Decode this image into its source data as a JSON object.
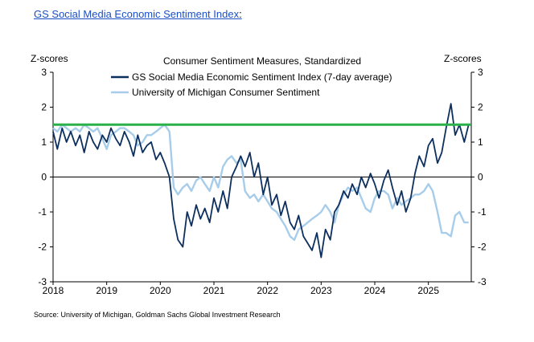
{
  "header": {
    "link_text": "GS Social Media Economic Sentiment Index",
    "link_suffix": ":"
  },
  "chart_data": {
    "type": "line",
    "title": "Consumer Sentiment Measures, Standardized",
    "ylabel_left": "Z-scores",
    "ylabel_right": "Z-scores",
    "xlim": [
      2018,
      2025.8
    ],
    "ylim": [
      -3,
      3
    ],
    "x_ticks": [
      "2018",
      "2019",
      "2020",
      "2021",
      "2022",
      "2023",
      "2024",
      "2025"
    ],
    "y_ticks": [
      3,
      2,
      1,
      0,
      -1,
      -2,
      -3
    ],
    "grid": false,
    "legend_placement": "top-center",
    "reference_line": {
      "y": 1.5,
      "color": "#2bb14a"
    },
    "series": [
      {
        "name": "GS Social Media Economic Sentiment Index (7-day average)",
        "color": "#0d2f5e",
        "x": [
          2018.0,
          2018.08,
          2018.17,
          2018.25,
          2018.33,
          2018.42,
          2018.5,
          2018.58,
          2018.67,
          2018.75,
          2018.83,
          2018.92,
          2019.0,
          2019.08,
          2019.17,
          2019.25,
          2019.33,
          2019.42,
          2019.5,
          2019.58,
          2019.67,
          2019.75,
          2019.83,
          2019.92,
          2020.0,
          2020.08,
          2020.17,
          2020.25,
          2020.33,
          2020.42,
          2020.5,
          2020.58,
          2020.67,
          2020.75,
          2020.83,
          2020.92,
          2021.0,
          2021.08,
          2021.17,
          2021.25,
          2021.33,
          2021.42,
          2021.5,
          2021.58,
          2021.67,
          2021.75,
          2021.83,
          2021.92,
          2022.0,
          2022.08,
          2022.17,
          2022.25,
          2022.33,
          2022.42,
          2022.5,
          2022.58,
          2022.67,
          2022.75,
          2022.83,
          2022.92,
          2023.0,
          2023.08,
          2023.17,
          2023.25,
          2023.33,
          2023.42,
          2023.5,
          2023.58,
          2023.67,
          2023.75,
          2023.83,
          2023.92,
          2024.0,
          2024.08,
          2024.17,
          2024.25,
          2024.33,
          2024.42,
          2024.5,
          2024.58,
          2024.67,
          2024.75,
          2024.83,
          2024.92,
          2025.0,
          2025.08,
          2025.17,
          2025.25,
          2025.33,
          2025.42,
          2025.5,
          2025.58,
          2025.67,
          2025.75
        ],
        "y": [
          1.3,
          0.8,
          1.4,
          1.0,
          1.3,
          0.9,
          1.2,
          0.7,
          1.3,
          1.0,
          0.8,
          1.2,
          1.0,
          1.4,
          1.1,
          0.9,
          1.3,
          1.0,
          0.6,
          1.2,
          0.7,
          0.9,
          1.0,
          0.5,
          0.7,
          0.4,
          0.0,
          -1.2,
          -1.8,
          -2.0,
          -1.0,
          -1.4,
          -0.8,
          -1.2,
          -0.9,
          -1.3,
          -0.6,
          -1.0,
          -0.4,
          -0.9,
          0.0,
          0.3,
          0.6,
          0.3,
          0.7,
          0.0,
          0.4,
          -0.5,
          0.0,
          -0.8,
          -0.5,
          -1.1,
          -0.7,
          -1.3,
          -1.5,
          -1.1,
          -1.7,
          -1.9,
          -2.1,
          -1.6,
          -2.3,
          -1.5,
          -1.8,
          -1.0,
          -0.8,
          -0.4,
          -0.6,
          -0.2,
          -0.5,
          0.0,
          -0.3,
          0.1,
          -0.2,
          -0.6,
          -0.1,
          0.2,
          -0.3,
          -0.8,
          -0.4,
          -1.0,
          -0.6,
          0.1,
          0.6,
          0.3,
          0.9,
          1.1,
          0.4,
          0.7,
          1.4,
          2.1,
          1.2,
          1.5,
          1.0,
          1.5
        ]
      },
      {
        "name": "University of Michigan Consumer Sentiment",
        "color": "#a7cdea",
        "x": [
          2018.0,
          2018.08,
          2018.17,
          2018.25,
          2018.33,
          2018.42,
          2018.5,
          2018.58,
          2018.67,
          2018.75,
          2018.83,
          2018.92,
          2019.0,
          2019.08,
          2019.17,
          2019.25,
          2019.33,
          2019.42,
          2019.5,
          2019.58,
          2019.67,
          2019.75,
          2019.83,
          2019.92,
          2020.0,
          2020.08,
          2020.17,
          2020.25,
          2020.33,
          2020.42,
          2020.5,
          2020.58,
          2020.67,
          2020.75,
          2020.83,
          2020.92,
          2021.0,
          2021.08,
          2021.17,
          2021.25,
          2021.33,
          2021.42,
          2021.5,
          2021.58,
          2021.67,
          2021.75,
          2021.83,
          2021.92,
          2022.0,
          2022.08,
          2022.17,
          2022.25,
          2022.33,
          2022.42,
          2022.5,
          2022.58,
          2022.67,
          2022.75,
          2022.83,
          2022.92,
          2023.0,
          2023.08,
          2023.17,
          2023.25,
          2023.33,
          2023.42,
          2023.5,
          2023.58,
          2023.67,
          2023.75,
          2023.83,
          2023.92,
          2024.0,
          2024.08,
          2024.17,
          2024.25,
          2024.33,
          2024.42,
          2024.5,
          2024.58,
          2024.67,
          2024.75,
          2024.83,
          2024.92,
          2025.0,
          2025.08,
          2025.17,
          2025.25,
          2025.33,
          2025.42,
          2025.5,
          2025.58,
          2025.67,
          2025.75
        ],
        "y": [
          1.4,
          1.3,
          1.5,
          1.4,
          1.3,
          1.4,
          1.3,
          1.5,
          1.4,
          1.3,
          1.4,
          1.1,
          0.8,
          1.2,
          1.3,
          1.4,
          1.4,
          1.3,
          1.2,
          0.9,
          1.0,
          1.2,
          1.2,
          1.3,
          1.4,
          1.5,
          1.3,
          -0.3,
          -0.5,
          -0.3,
          -0.2,
          -0.4,
          -0.1,
          0.0,
          -0.2,
          -0.4,
          0.0,
          -0.3,
          0.3,
          0.5,
          0.6,
          0.4,
          0.5,
          -0.4,
          -0.6,
          -0.5,
          -0.7,
          -0.5,
          -0.7,
          -0.9,
          -1.0,
          -1.2,
          -1.4,
          -1.7,
          -1.8,
          -1.5,
          -1.4,
          -1.3,
          -1.2,
          -1.1,
          -1.0,
          -0.8,
          -1.0,
          -1.3,
          -0.8,
          -0.5,
          -0.3,
          -0.4,
          -0.3,
          -0.6,
          -0.9,
          -1.0,
          -0.6,
          -0.4,
          -0.4,
          -0.5,
          -0.9,
          -0.6,
          -0.8,
          -0.7,
          -0.6,
          -0.5,
          -0.5,
          -0.4,
          -0.2,
          -0.4,
          -1.0,
          -1.6,
          -1.6,
          -1.7,
          -1.1,
          -1.0,
          -1.3,
          -1.3
        ]
      }
    ]
  },
  "footer": {
    "source": "Source: University of Michigan, Goldman Sachs Global Investment Research"
  }
}
